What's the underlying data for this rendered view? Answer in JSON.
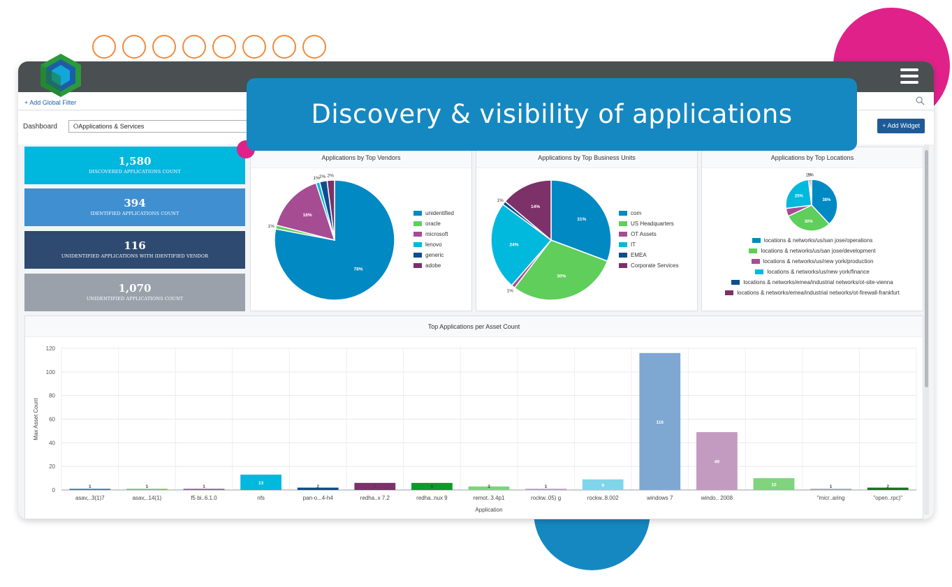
{
  "banner": {
    "text": "Discovery & visibility of applications"
  },
  "filterbar": {
    "add_filter": "+ Add Global Filter"
  },
  "dashboard": {
    "label": "Dashboard",
    "selected": "⭘Applications & Services",
    "add_widget": "+ Add Widget"
  },
  "stats": [
    {
      "value": "1,580",
      "label": "DISCOVERED APPLICATIONS COUNT",
      "color": "#00b7dd"
    },
    {
      "value": "394",
      "label": "IDENTIFIED APPLICATIONS COUNT",
      "color": "#3f8fd1"
    },
    {
      "value": "116",
      "label": "UNIDENTIFIED APPLICATIONS WITH IDENTIFIED VENDOR",
      "color": "#2f4a70"
    },
    {
      "value": "1,070",
      "label": "UNIDENTIFIED APPLICATIONS COUNT",
      "color": "#9aa1ab"
    }
  ],
  "chart_data": [
    {
      "type": "pie",
      "title": "Applications by Top Vendors",
      "series": [
        {
          "name": "unidentified",
          "value": 78,
          "label": "78%",
          "color": "#0089c3"
        },
        {
          "name": "oracle",
          "value": 1,
          "label": "1%",
          "color": "#5fce5a"
        },
        {
          "name": "microsoft",
          "value": 16,
          "label": "16%",
          "color": "#a64c93"
        },
        {
          "name": "lenovo",
          "value": 1,
          "label": "1%",
          "color": "#00b9dc"
        },
        {
          "name": "generic",
          "value": 2,
          "label": "2%",
          "color": "#0d4e8e"
        },
        {
          "name": "adobe",
          "value": 2,
          "label": "2%",
          "color": "#7c3168"
        }
      ]
    },
    {
      "type": "pie",
      "title": "Applications by Top Business Units",
      "series": [
        {
          "name": "com",
          "value": 31,
          "label": "31%",
          "color": "#0089c3"
        },
        {
          "name": "US Headquarters",
          "value": 30,
          "label": "30%",
          "color": "#5fce5a"
        },
        {
          "name": "OT Assets",
          "value": 1,
          "label": "1%",
          "color": "#a64c93"
        },
        {
          "name": "IT",
          "value": 24,
          "label": "24%",
          "color": "#00b9dc"
        },
        {
          "name": "EMEA",
          "value": 1,
          "label": "1%",
          "color": "#0d4e8e"
        },
        {
          "name": "Corporate Services",
          "value": 14,
          "label": "14%",
          "color": "#7c3168"
        }
      ]
    },
    {
      "type": "pie",
      "title": "Applications by Top Locations",
      "series": [
        {
          "name": "locations & networks/us/san jose/operations",
          "value": 38,
          "label": "38%",
          "color": "#0089c3"
        },
        {
          "name": "locations & networks/us/san jose/development",
          "value": 30,
          "label": "30%",
          "color": "#5fce5a"
        },
        {
          "name": "locations & networks/us/new york/production",
          "value": 5,
          "label": "",
          "color": "#a64c93"
        },
        {
          "name": "locations & networks/us/new york/finance",
          "value": 25,
          "label": "25%",
          "color": "#00b9dc"
        },
        {
          "name": "locations & networks/emea/industrial networks/ot-site-vienna",
          "value": 1,
          "label": "1%",
          "color": "#0d4e8e"
        },
        {
          "name": "locations & networks/emea/industrial networks/ot-firewall-frankfurt",
          "value": 1,
          "label": "1%",
          "color": "#7c3168"
        }
      ]
    },
    {
      "type": "bar",
      "title": "Top Applications per Asset Count",
      "xlabel": "Application",
      "ylabel": "Max Asset Count",
      "ylim": [
        0,
        120
      ],
      "yticks": [
        0,
        20,
        40,
        60,
        80,
        100,
        120
      ],
      "categories": [
        "asav,..3(1)7",
        "asav,..14(1)",
        "f5 bi..6.1.0",
        "nfs",
        "pan-o...4-h4",
        "redha..x 7.2",
        "redha..nux 9",
        "remot..3.4p1",
        "rockw..05) g",
        "rockw..8.002",
        "windows 7",
        "windo.. 2008",
        "",
        "\"micr..aring",
        "\"open..rpc)\""
      ],
      "values": [
        1,
        1,
        1,
        13,
        2,
        6,
        6,
        3,
        1,
        9,
        116,
        49,
        10,
        1,
        2
      ],
      "colors": [
        "#0a86c2",
        "#5fce5a",
        "#a64c93",
        "#00b9dc",
        "#0d4e8e",
        "#7c3168",
        "#0d9a2a",
        "#7fd47d",
        "#c98fc2",
        "#7fd6ea",
        "#7ea8d2",
        "#c39ac0",
        "#7fd47d",
        "#9aa4ae",
        "#1f6e20"
      ]
    }
  ]
}
